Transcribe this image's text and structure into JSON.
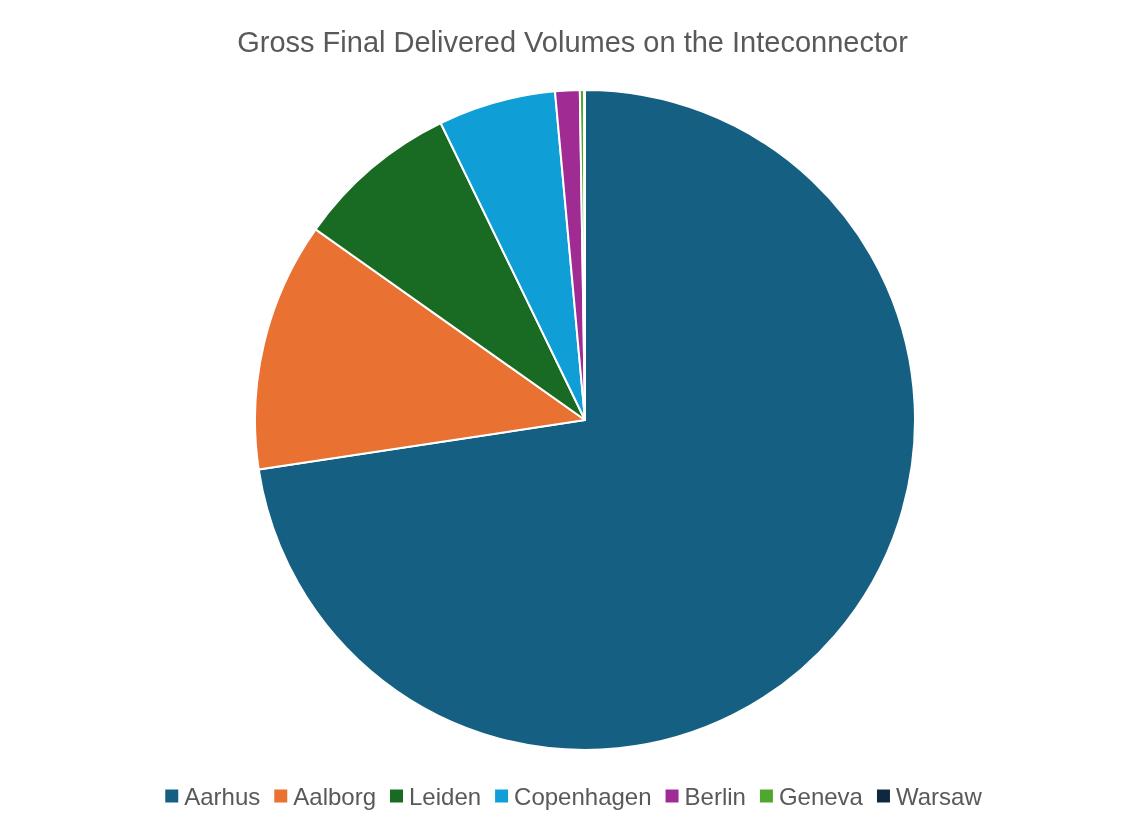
{
  "chart_data": {
    "type": "pie",
    "title": "Gross Final Delivered Volumes on the Inteconnector",
    "categories": [
      "Aarhus",
      "Aalborg",
      "Leiden",
      "Copenhagen",
      "Berlin",
      "Geneva",
      "Warsaw"
    ],
    "values": [
      72.6,
      12.2,
      8.0,
      5.75,
      1.2,
      0.2,
      0.05
    ],
    "colors": [
      "#156082",
      "#e97132",
      "#196b24",
      "#0f9ed5",
      "#a02b93",
      "#4ea72e",
      "#0e2841"
    ],
    "legend": "bottom"
  }
}
